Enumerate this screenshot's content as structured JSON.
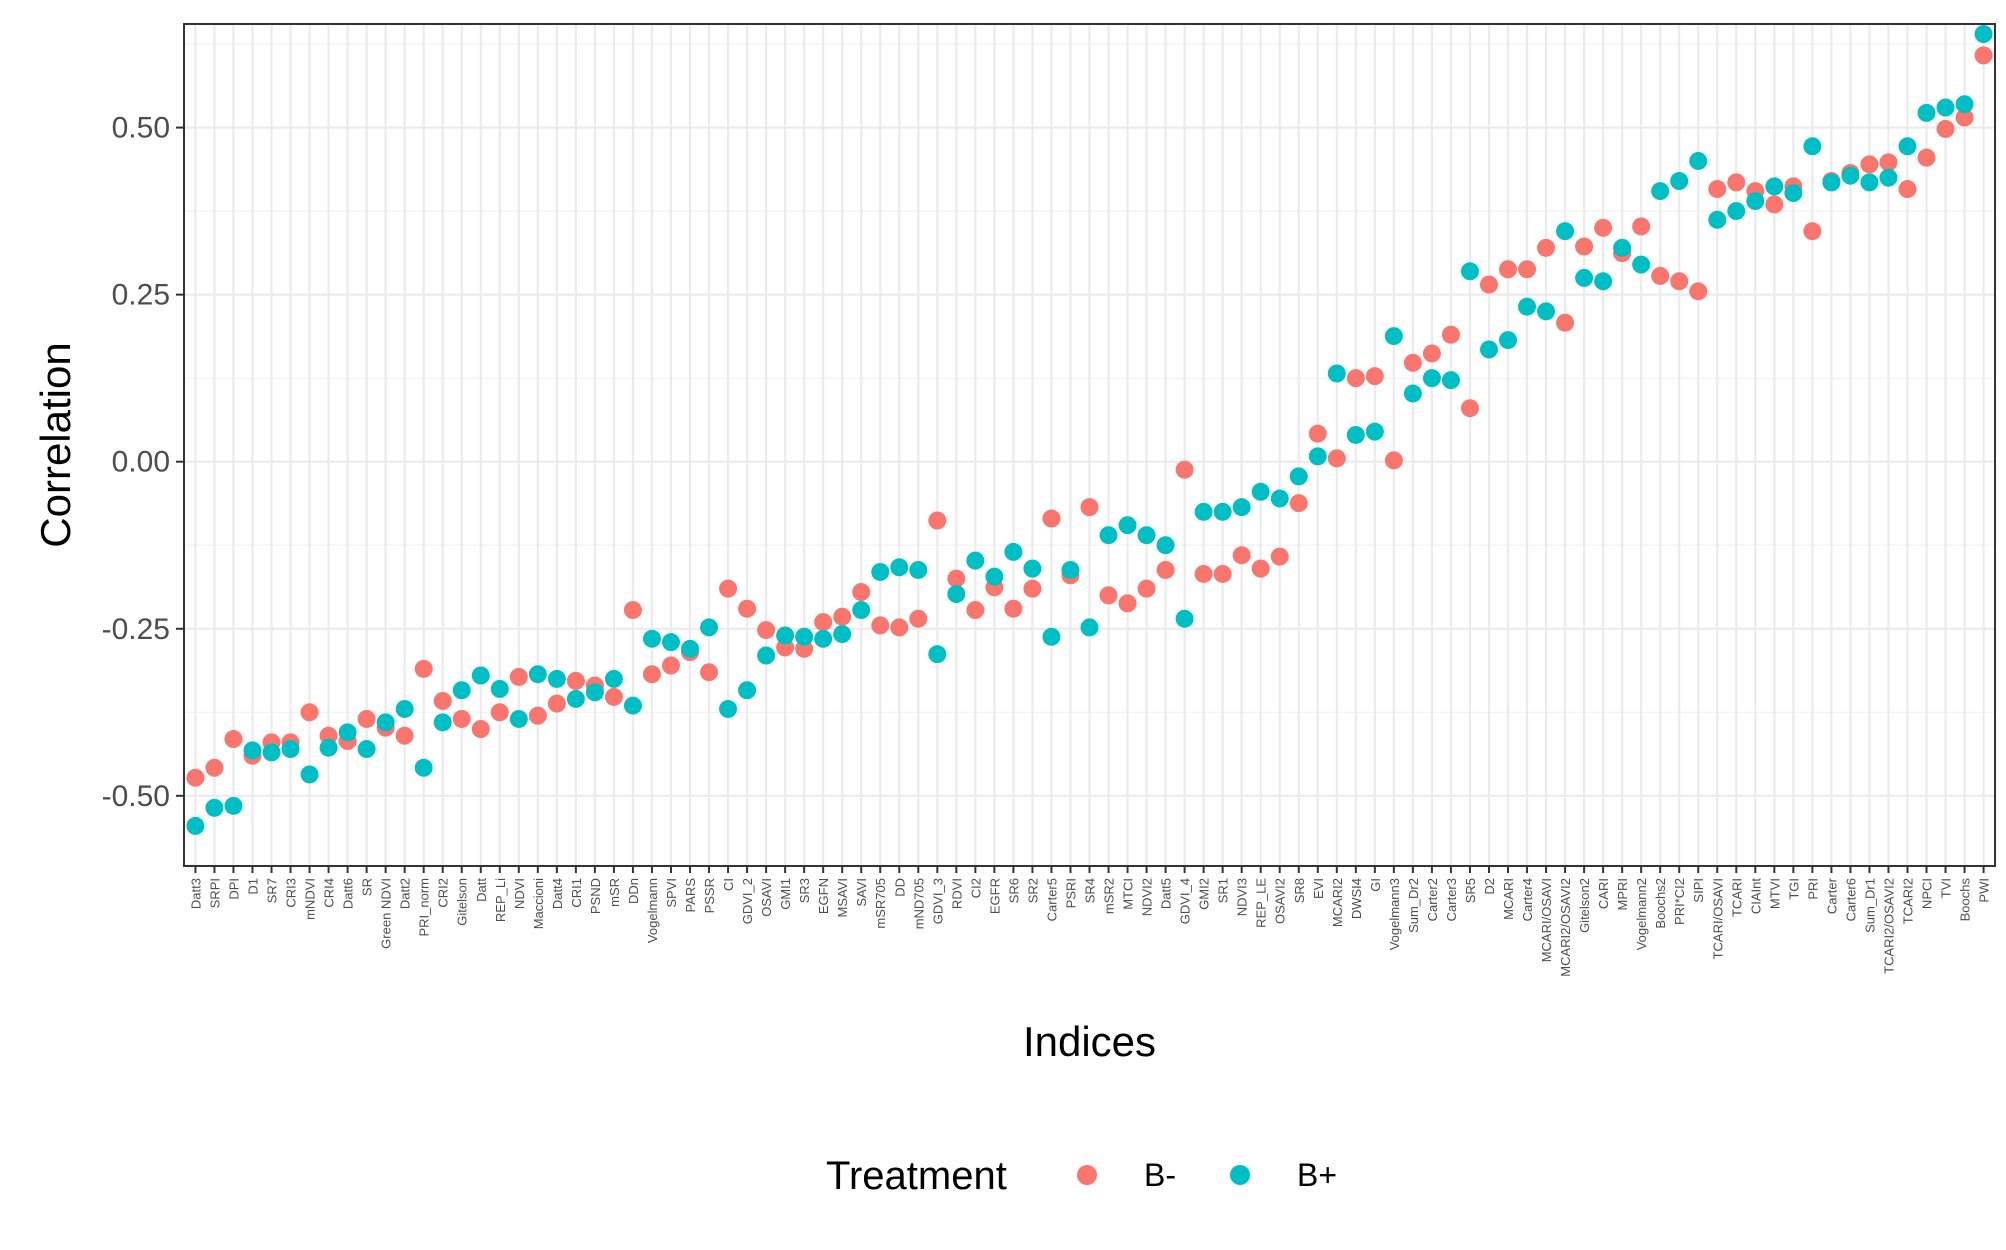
{
  "chart_data": {
    "type": "scatter",
    "xlabel": "Indices",
    "ylabel": "Correlation",
    "ylim": [
      -0.605,
      0.655
    ],
    "y_ticks": [
      -0.5,
      -0.25,
      0.0,
      0.25,
      0.5
    ],
    "y_tick_labels": [
      "-0.50",
      "-0.25",
      "0.00",
      "0.25",
      "0.50"
    ],
    "grid": true,
    "legend": {
      "title": "Treatment",
      "placement": "bottom",
      "entries": [
        {
          "label": "B-",
          "color": "#F8766D"
        },
        {
          "label": "B+",
          "color": "#00BFC4"
        }
      ]
    },
    "categories": [
      "Datt3",
      "SRPI",
      "DPI",
      "D1",
      "SR7",
      "CRI3",
      "mNDVI",
      "CRI4",
      "Datt6",
      "SR",
      "Green NDVI",
      "Datt2",
      "PRI_norm",
      "CRI2",
      "Gitelson",
      "Datt",
      "REP_Li",
      "NDVI",
      "Maccioni",
      "Datt4",
      "CRI1",
      "PSND",
      "mSR",
      "DDn",
      "Vogelmann",
      "SPVI",
      "PARS",
      "PSSR",
      "CI",
      "GDVI_2",
      "OSAVI",
      "GMI1",
      "SR3",
      "EGFN",
      "MSAVI",
      "SAVI",
      "mSR705",
      "DD",
      "mND705",
      "GDVI_3",
      "RDVI",
      "CI2",
      "EGFR",
      "SR6",
      "SR2",
      "Carter5",
      "PSRI",
      "SR4",
      "mSR2",
      "MTCI",
      "NDVI2",
      "Datt5",
      "GDVI_4",
      "GMI2",
      "SR1",
      "NDVI3",
      "REP_LE",
      "OSAVI2",
      "SR8",
      "EVI",
      "MCARI2",
      "DWSI4",
      "GI",
      "Vogelmann3",
      "Sum_Dr2",
      "Carter2",
      "Carter3",
      "SR5",
      "D2",
      "MCARI",
      "Carter4",
      "MCARI/OSAVI",
      "MCARI2/OSAVI2",
      "Gitelson2",
      "CARI",
      "MPRI",
      "Vogelmann2",
      "Boochs2",
      "PRI*CI2",
      "SIPI",
      "TCARI/OSAVI",
      "TCARI",
      "CIAInt",
      "MTVI",
      "TGI",
      "PRI",
      "Carter",
      "Carter6",
      "Sum_Dr1",
      "TCARI2/OSAVI2",
      "TCARI2",
      "NPCI",
      "TVI",
      "Boochs",
      "PWI"
    ],
    "series": [
      {
        "name": "B-",
        "color": "#F8766D",
        "values": [
          -0.473,
          -0.458,
          -0.415,
          -0.44,
          -0.42,
          -0.42,
          -0.375,
          -0.41,
          -0.418,
          -0.385,
          -0.398,
          -0.41,
          -0.31,
          -0.358,
          -0.385,
          -0.4,
          -0.375,
          -0.322,
          -0.38,
          -0.362,
          -0.328,
          -0.335,
          -0.352,
          -0.222,
          -0.318,
          -0.305,
          -0.285,
          -0.315,
          -0.19,
          -0.22,
          -0.252,
          -0.278,
          -0.28,
          -0.24,
          -0.232,
          -0.195,
          -0.245,
          -0.248,
          -0.235,
          -0.088,
          -0.175,
          -0.222,
          -0.188,
          -0.22,
          -0.19,
          -0.085,
          -0.17,
          -0.068,
          -0.2,
          -0.212,
          -0.19,
          -0.162,
          -0.012,
          -0.168,
          -0.168,
          -0.14,
          -0.16,
          -0.142,
          -0.062,
          0.042,
          0.005,
          0.125,
          0.128,
          0.002,
          0.148,
          0.162,
          0.19,
          0.08,
          0.265,
          0.288,
          0.288,
          0.32,
          0.208,
          0.322,
          0.35,
          0.312,
          0.352,
          0.278,
          0.27,
          0.255,
          0.408,
          0.418,
          0.405,
          0.385,
          0.412,
          0.345,
          0.42,
          0.432,
          0.445,
          0.448,
          0.408,
          0.455,
          0.498,
          0.515,
          0.608
        ]
      },
      {
        "name": "B+",
        "color": "#00BFC4",
        "values": [
          -0.545,
          -0.518,
          -0.515,
          -0.432,
          -0.435,
          -0.43,
          -0.468,
          -0.428,
          -0.405,
          -0.43,
          -0.39,
          -0.37,
          -0.458,
          -0.39,
          -0.342,
          -0.32,
          -0.34,
          -0.385,
          -0.318,
          -0.325,
          -0.355,
          -0.345,
          -0.325,
          -0.365,
          -0.265,
          -0.27,
          -0.28,
          -0.248,
          -0.37,
          -0.342,
          -0.29,
          -0.26,
          -0.262,
          -0.265,
          -0.258,
          -0.222,
          -0.165,
          -0.158,
          -0.162,
          -0.288,
          -0.198,
          -0.148,
          -0.172,
          -0.135,
          -0.16,
          -0.262,
          -0.162,
          -0.248,
          -0.11,
          -0.095,
          -0.11,
          -0.125,
          -0.235,
          -0.075,
          -0.075,
          -0.068,
          -0.045,
          -0.055,
          -0.022,
          0.008,
          0.132,
          0.04,
          0.045,
          0.188,
          0.102,
          0.125,
          0.122,
          0.285,
          0.168,
          0.182,
          0.232,
          0.225,
          0.345,
          0.275,
          0.27,
          0.32,
          0.295,
          0.405,
          0.42,
          0.45,
          0.362,
          0.375,
          0.39,
          0.412,
          0.402,
          0.472,
          0.418,
          0.428,
          0.418,
          0.425,
          0.472,
          0.522,
          0.53,
          0.535,
          0.64
        ]
      }
    ]
  }
}
